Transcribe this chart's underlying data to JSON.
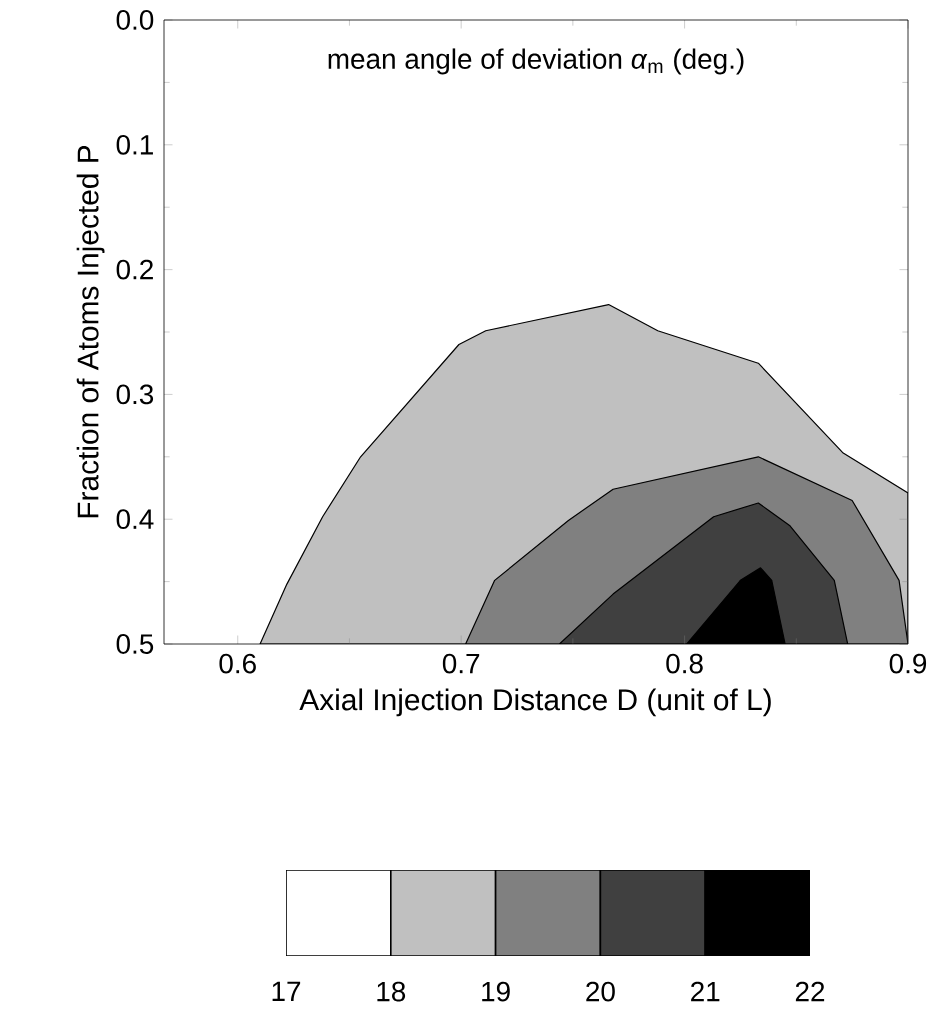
{
  "chart_data": {
    "type": "area",
    "xlabel": "Axial Injection Distance D (unit of L)",
    "ylabel": "Fraction of Atoms Injected P",
    "annotations": [
      "mean angle of deviation *α*$_{m}$ (deg.)"
    ],
    "xlim": [
      0.567,
      0.9
    ],
    "xticks": [
      0.6,
      0.7,
      0.8,
      0.9
    ],
    "ylim": [
      0.5,
      0.0
    ],
    "yticks": [
      {
        "value": 0,
        "label": "0.0"
      },
      0.1,
      0.2,
      0.3,
      0.4,
      {
        "value": 0.5,
        "label": "0.5"
      }
    ],
    "series": [
      {
        "color": "#c0c0c0",
        "x": [
          0.61,
          0.622,
          0.638,
          0.655,
          0.699,
          0.711,
          0.766,
          0.788,
          0.833,
          0.871,
          0.9,
          0.9
        ],
        "values": [
          0.5,
          0.452,
          0.398,
          0.35,
          0.26,
          0.249,
          0.228,
          0.249,
          0.275,
          0.347,
          0.379,
          0.5
        ]
      },
      {
        "color": "#808080",
        "x": [
          0.702,
          0.715,
          0.748,
          0.768,
          0.833,
          0.875,
          0.896,
          0.9
        ],
        "values": [
          0.5,
          0.449,
          0.401,
          0.376,
          0.35,
          0.385,
          0.449,
          0.5
        ]
      },
      {
        "color": "#404040",
        "x": [
          0.744,
          0.768,
          0.813,
          0.833,
          0.847,
          0.867,
          0.873
        ],
        "values": [
          0.5,
          0.46,
          0.398,
          0.387,
          0.405,
          0.449,
          0.5
        ]
      },
      {
        "color": "#000000",
        "x": [
          0.801,
          0.825,
          0.834,
          0.839,
          0.845
        ],
        "values": [
          0.5,
          0.449,
          0.439,
          0.449,
          0.5
        ]
      }
    ],
    "clim": [
      17,
      22
    ],
    "cticks": [
      17,
      18,
      19,
      20,
      21,
      22
    ],
    "colors": [
      "#ffffff",
      "#c0c0c0",
      "#808080",
      "#404040",
      "#000000"
    ]
  }
}
